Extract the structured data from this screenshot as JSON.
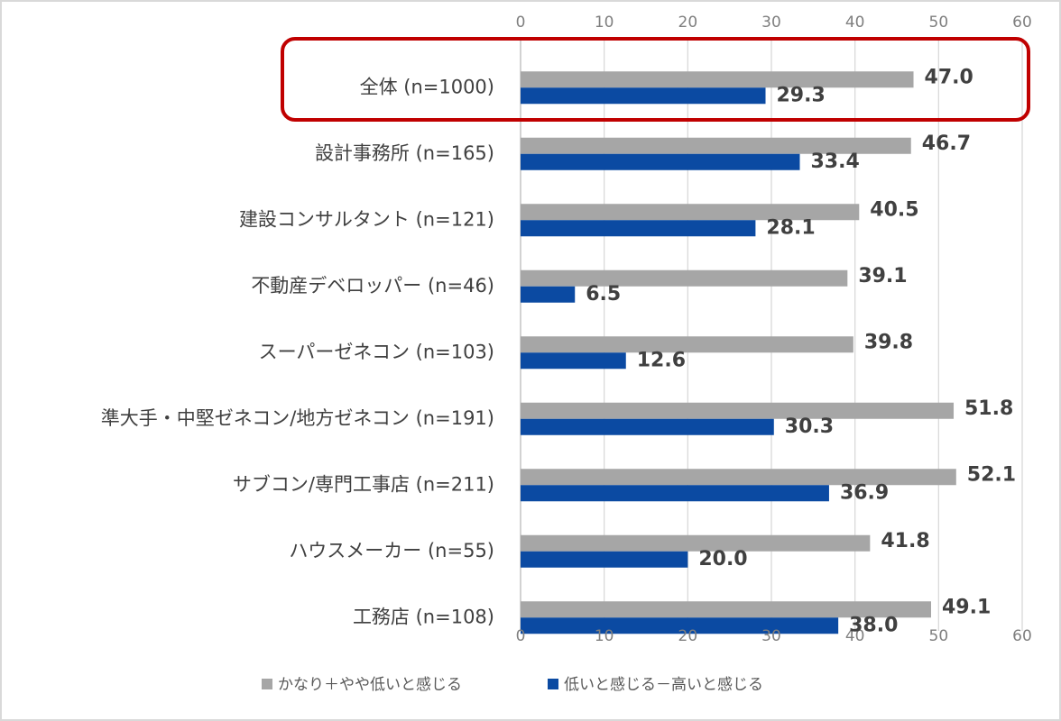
{
  "chart_data": {
    "type": "bar",
    "orientation": "horizontal",
    "categories": [
      "全体 (n=1000)",
      "設計事務所 (n=165)",
      "建設コンサルタント (n=121)",
      "不動産デベロッパー (n=46)",
      "スーパーゼネコン (n=103)",
      "準大手・中堅ゼネコン/地方ゼネコン (n=191)",
      "サブコン/専門工事店 (n=211)",
      "ハウスメーカー (n=55)",
      "工務店 (n=108)"
    ],
    "series": [
      {
        "name": "かなり＋やや低いと感じる",
        "color": "#a6a6a6",
        "values": [
          47.0,
          46.7,
          40.5,
          39.1,
          39.8,
          51.8,
          52.1,
          41.8,
          49.1
        ],
        "value_labels": [
          "47.0",
          "46.7",
          "40.5",
          "39.1",
          "39.8",
          "51.8",
          "52.1",
          "41.8",
          "49.1"
        ]
      },
      {
        "name": "低いと感じる－高いと感じる",
        "color": "#0b4aa2",
        "values": [
          29.3,
          33.4,
          28.1,
          6.5,
          12.6,
          30.3,
          36.9,
          20.0,
          38.0
        ],
        "value_labels": [
          "29.3",
          "33.4",
          "28.1",
          "6.5",
          "12.6",
          "30.3",
          "36.9",
          "20.0",
          "38.0"
        ]
      }
    ],
    "xlim": [
      0,
      60
    ],
    "xticks": [
      0,
      10,
      20,
      30,
      40,
      50,
      60
    ],
    "grid": true,
    "legend": "bottom"
  }
}
